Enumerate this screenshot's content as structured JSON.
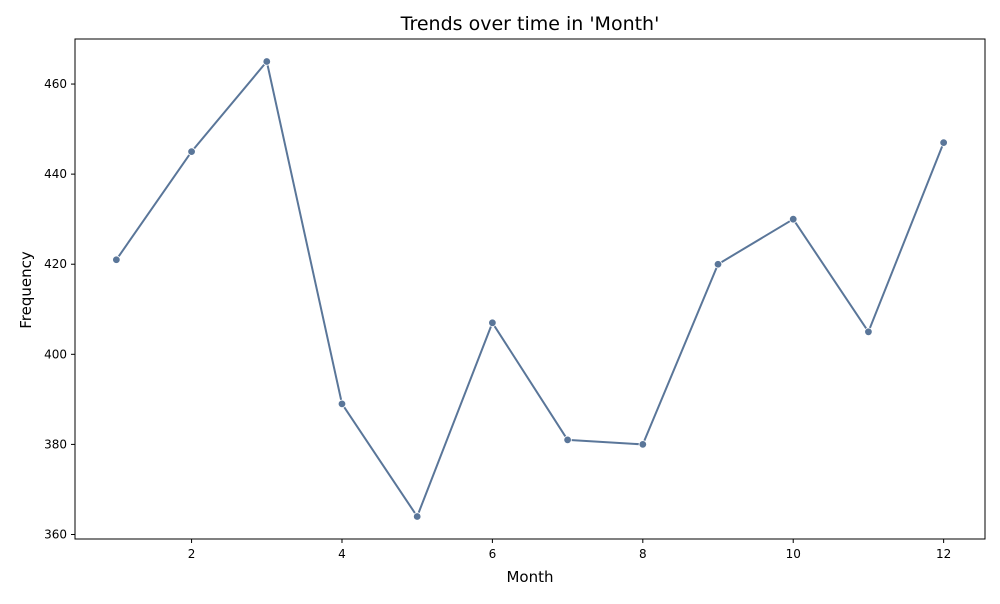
{
  "chart_data": {
    "type": "line",
    "title": "Trends over time in 'Month'",
    "xlabel": "Month",
    "ylabel": "Frequency",
    "x": [
      1,
      2,
      3,
      4,
      5,
      6,
      7,
      8,
      9,
      10,
      11,
      12
    ],
    "series": [
      {
        "values": [
          421,
          445,
          465,
          389,
          364,
          407,
          381,
          380,
          420,
          430,
          405,
          447
        ],
        "color": "#5a7699",
        "marker": "circle"
      }
    ],
    "xlim": [
      0.45,
      12.55
    ],
    "ylim": [
      359,
      470
    ],
    "xticks": [
      2,
      4,
      6,
      8,
      10,
      12
    ],
    "yticks": [
      360,
      380,
      400,
      420,
      440,
      460
    ],
    "grid": false,
    "legend": "none"
  }
}
